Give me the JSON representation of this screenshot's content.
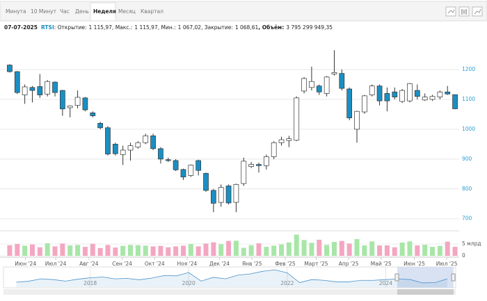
{
  "tabs": [
    "Минута",
    "10 Минут",
    "Час",
    "День",
    "Неделя",
    "Месяц",
    "Квартал"
  ],
  "active_tab": "Неделя",
  "info": {
    "date": "07-07-2025",
    "symbol": "RTSI",
    "items": [
      {
        "label": ": Открытие:",
        "value": "1 115,97"
      },
      {
        "label": ", Макс.:",
        "value": "1 115,97"
      },
      {
        "label": ", Мин.:",
        "value": "1 067,02"
      },
      {
        "label": ", Закрытие:",
        "value": "1 068,61"
      },
      {
        "label": ", Объём:",
        "value": "3 795 299 949,35"
      }
    ]
  },
  "chart_data": {
    "type": "candlestick",
    "up_color": "#ffffff",
    "down_color": "#1a8fc4",
    "volume_up_color": "#a8e6a8",
    "volume_down_color": "#f4a6c0",
    "grid": true,
    "open": [
      1215,
      1193,
      1115,
      1140,
      1143,
      1118,
      1158,
      1130,
      1072,
      1080,
      1105,
      1055,
      1020,
      1005,
      950,
      915,
      930,
      940,
      955,
      978,
      935,
      898,
      895,
      865,
      845,
      895,
      852,
      795,
      755,
      810,
      755,
      818,
      875,
      882,
      878,
      908,
      955,
      962,
      963,
      1128,
      1140,
      1145,
      1120,
      1185,
      1187,
      1135,
      1000,
      1058,
      1115,
      1145,
      1120,
      1125,
      1093,
      1095,
      1130,
      1098,
      1100,
      1108,
      1125,
      1115.97
    ],
    "high": [
      1218,
      1195,
      1150,
      1145,
      1185,
      1165,
      1160,
      1132,
      1080,
      1130,
      1108,
      1060,
      1025,
      1010,
      955,
      945,
      955,
      960,
      985,
      985,
      940,
      905,
      900,
      868,
      882,
      898,
      855,
      800,
      815,
      815,
      818,
      905,
      890,
      888,
      915,
      960,
      975,
      978,
      1110,
      1175,
      1210,
      1150,
      1178,
      1265,
      1200,
      1140,
      1062,
      1115,
      1150,
      1150,
      1140,
      1140,
      1135,
      1155,
      1150,
      1120,
      1115,
      1130,
      1145,
      1115.97
    ],
    "low": [
      1190,
      1118,
      1085,
      1090,
      1105,
      1110,
      1110,
      1045,
      1040,
      1070,
      1060,
      1040,
      1000,
      912,
      912,
      880,
      895,
      935,
      950,
      930,
      885,
      890,
      860,
      830,
      840,
      845,
      790,
      722,
      740,
      748,
      722,
      810,
      870,
      855,
      865,
      900,
      945,
      940,
      960,
      1120,
      1130,
      1115,
      1110,
      1180,
      1130,
      1030,
      955,
      1052,
      1110,
      1080,
      1060,
      1100,
      1088,
      1090,
      1100,
      1095,
      1095,
      1100,
      1115,
      1067.02
    ],
    "close": [
      1193,
      1123,
      1142,
      1130,
      1115,
      1160,
      1123,
      1068,
      1078,
      1107,
      1065,
      1045,
      1005,
      917,
      918,
      930,
      945,
      955,
      978,
      935,
      900,
      895,
      864,
      840,
      880,
      862,
      795,
      752,
      805,
      753,
      815,
      893,
      882,
      878,
      908,
      955,
      965,
      968,
      1105,
      1170,
      1160,
      1125,
      1175,
      1190,
      1137,
      1038,
      1060,
      1112,
      1145,
      1095,
      1095,
      1108,
      1130,
      1153,
      1110,
      1108,
      1110,
      1125,
      1118,
      1068.61
    ],
    "volume": [
      4.5,
      5.0,
      4.3,
      4.8,
      3.6,
      5.3,
      4.0,
      5.2,
      4.4,
      4.6,
      3.8,
      5.1,
      3.3,
      4.6,
      3.5,
      4.2,
      4.6,
      4.5,
      4.3,
      4.0,
      4.2,
      3.6,
      4.0,
      4.3,
      5.0,
      4.0,
      5.2,
      5.7,
      4.9,
      6.3,
      6.4,
      3.4,
      4.5,
      5.3,
      3.8,
      4.3,
      4.8,
      5.7,
      9.0,
      6.7,
      5.5,
      6.8,
      4.6,
      5.9,
      6.3,
      5.2,
      7.1,
      4.4,
      6.1,
      4.4,
      4.4,
      3.6,
      5.6,
      6.1,
      4.4,
      4.7,
      3.8,
      4.2,
      6.0,
      3.795
    ],
    "ylim": [
      676,
      1298
    ],
    "yticks": [
      700,
      800,
      900,
      1000,
      1100,
      1200
    ],
    "volume_ylim": [
      0,
      10.3
    ],
    "volume_yticks": [
      0,
      {
        "value": 5,
        "label": "5 млрд"
      }
    ],
    "xlim": [
      -0.5,
      59.5
    ],
    "xticks": [
      {
        "value": 2.1,
        "label": "Июн '24"
      },
      {
        "value": 6.1,
        "label": "Июл '24"
      },
      {
        "value": 10.5,
        "label": "Авг '24"
      },
      {
        "value": 14.9,
        "label": "Сен '24"
      },
      {
        "value": 19.2,
        "label": "Окт '24"
      },
      {
        "value": 23.5,
        "label": "Ноя '24"
      },
      {
        "value": 27.8,
        "label": "Дек '24"
      },
      {
        "value": 32.1,
        "label": "Янв '25"
      },
      {
        "value": 36.5,
        "label": "Фев '25"
      },
      {
        "value": 40.6,
        "label": "Март '25"
      },
      {
        "value": 44.9,
        "label": "Апр '25"
      },
      {
        "value": 49.2,
        "label": "Май '25"
      },
      {
        "value": 53.6,
        "label": "Июн '25"
      },
      {
        "value": 57.9,
        "label": "Июл '25"
      }
    ]
  },
  "navigator": {
    "type": "area",
    "color": "#4a90c8",
    "x": [
      2016.5,
      2016.75,
      2017,
      2017.25,
      2017.5,
      2017.75,
      2018,
      2018.25,
      2018.5,
      2018.75,
      2019,
      2019.25,
      2019.5,
      2019.75,
      2020,
      2020.25,
      2020.5,
      2020.75,
      2021,
      2021.25,
      2021.5,
      2021.75,
      2022,
      2022.25,
      2022.5,
      2022.75,
      2023,
      2023.25,
      2023.5,
      2023.75,
      2024,
      2024.25,
      2024.5,
      2024.75,
      2025,
      2025.25
    ],
    "values": [
      930,
      990,
      1150,
      1100,
      1000,
      1130,
      1220,
      1270,
      1150,
      1180,
      1090,
      1200,
      1370,
      1350,
      1570,
      1000,
      1250,
      1150,
      1400,
      1480,
      1650,
      1750,
      1550,
      900,
      1100,
      1050,
      950,
      950,
      1050,
      1050,
      1100,
      1150,
      1100,
      880,
      900,
      1150
    ],
    "xlim": [
      2016.24,
      2025.42
    ],
    "ylim": [
      600,
      1850
    ],
    "xticks": [
      2018,
      2020,
      2022,
      2024
    ]
  }
}
